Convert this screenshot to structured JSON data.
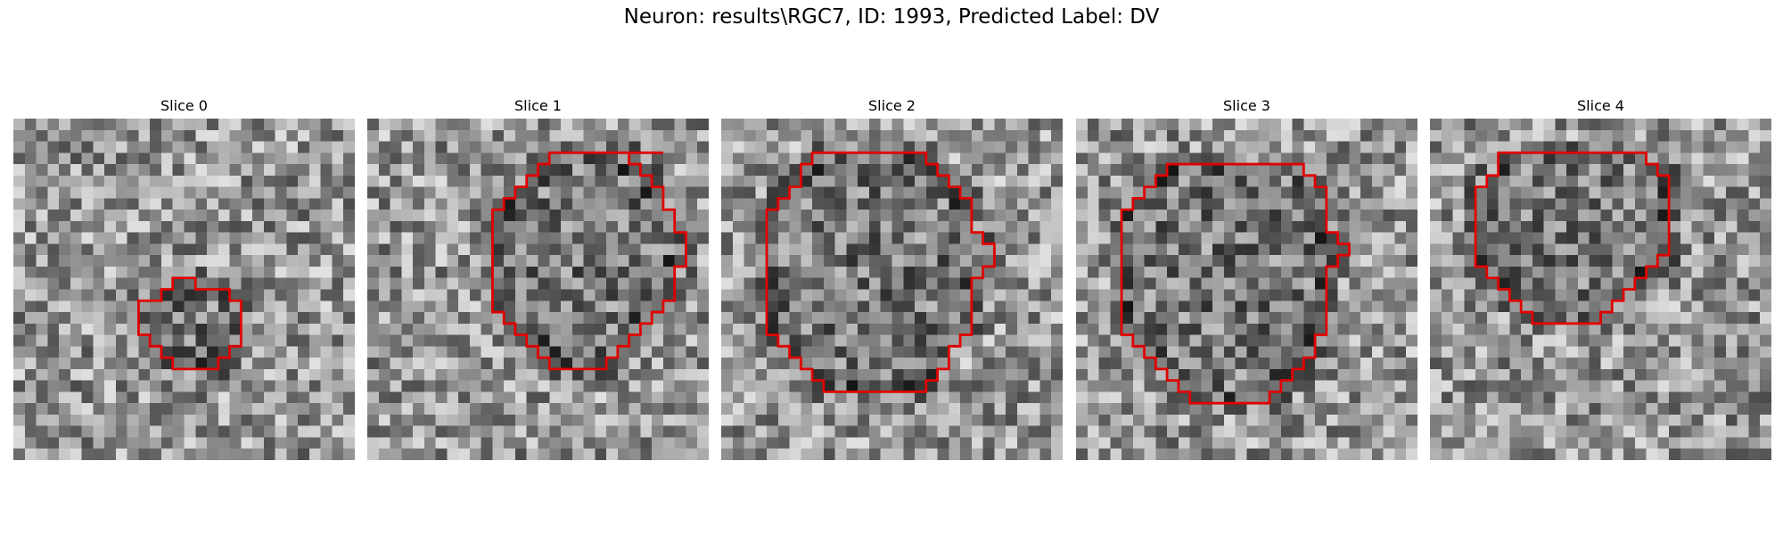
{
  "figure": {
    "title": "Neuron: results\\RGC7, ID: 1993, Predicted Label: DV",
    "contour_color": "#e00000"
  },
  "panels": [
    {
      "title": "Slice 0",
      "contour": [
        [
          19,
          15
        ],
        [
          16,
          15
        ],
        [
          16,
          14
        ],
        [
          14,
          14
        ],
        [
          14,
          15
        ],
        [
          13,
          15
        ],
        [
          13,
          16
        ],
        [
          11,
          16
        ],
        [
          11,
          19
        ],
        [
          12,
          19
        ],
        [
          12,
          20
        ],
        [
          13,
          20
        ],
        [
          13,
          21
        ],
        [
          14,
          21
        ],
        [
          14,
          22
        ],
        [
          18,
          22
        ],
        [
          18,
          21
        ],
        [
          19,
          21
        ],
        [
          19,
          20
        ],
        [
          20,
          20
        ],
        [
          20,
          19
        ],
        [
          20,
          16
        ],
        [
          19,
          16
        ]
      ]
    },
    {
      "title": "Slice 1",
      "contour": [
        [
          26,
          3
        ],
        [
          16,
          3
        ],
        [
          16,
          4
        ],
        [
          15,
          4
        ],
        [
          15,
          5
        ],
        [
          14,
          5
        ],
        [
          14,
          6
        ],
        [
          13,
          6
        ],
        [
          13,
          7
        ],
        [
          12,
          7
        ],
        [
          12,
          8
        ],
        [
          11,
          8
        ],
        [
          11,
          17
        ],
        [
          12,
          17
        ],
        [
          12,
          18
        ],
        [
          13,
          18
        ],
        [
          13,
          19
        ],
        [
          14,
          19
        ],
        [
          14,
          20
        ],
        [
          15,
          20
        ],
        [
          15,
          21
        ],
        [
          16,
          21
        ],
        [
          16,
          22
        ],
        [
          21,
          22
        ],
        [
          21,
          21
        ],
        [
          22,
          21
        ],
        [
          22,
          20
        ],
        [
          23,
          20
        ],
        [
          23,
          19
        ],
        [
          24,
          19
        ],
        [
          24,
          18
        ],
        [
          25,
          18
        ],
        [
          25,
          17
        ],
        [
          26,
          17
        ],
        [
          26,
          16
        ],
        [
          27,
          16
        ],
        [
          27,
          13
        ],
        [
          28,
          13
        ],
        [
          28,
          10
        ],
        [
          27,
          10
        ],
        [
          27,
          8
        ],
        [
          26,
          8
        ],
        [
          26,
          6
        ],
        [
          25,
          6
        ],
        [
          25,
          5
        ],
        [
          24,
          5
        ],
        [
          24,
          4
        ],
        [
          23,
          4
        ],
        [
          23,
          3
        ]
      ]
    },
    {
      "title": "Slice 2",
      "contour": [
        [
          17,
          3
        ],
        [
          8,
          3
        ],
        [
          8,
          4
        ],
        [
          7,
          4
        ],
        [
          7,
          6
        ],
        [
          6,
          6
        ],
        [
          6,
          7
        ],
        [
          5,
          7
        ],
        [
          5,
          8
        ],
        [
          4,
          8
        ],
        [
          4,
          19
        ],
        [
          5,
          19
        ],
        [
          5,
          20
        ],
        [
          6,
          20
        ],
        [
          6,
          21
        ],
        [
          7,
          21
        ],
        [
          7,
          22
        ],
        [
          8,
          22
        ],
        [
          8,
          23
        ],
        [
          9,
          23
        ],
        [
          9,
          24
        ],
        [
          18,
          24
        ],
        [
          18,
          23
        ],
        [
          19,
          23
        ],
        [
          19,
          22
        ],
        [
          20,
          22
        ],
        [
          20,
          20
        ],
        [
          21,
          20
        ],
        [
          21,
          19
        ],
        [
          22,
          19
        ],
        [
          22,
          14
        ],
        [
          23,
          14
        ],
        [
          23,
          13
        ],
        [
          24,
          13
        ],
        [
          24,
          12
        ],
        [
          24,
          11
        ],
        [
          23,
          11
        ],
        [
          23,
          10
        ],
        [
          22,
          10
        ],
        [
          22,
          7
        ],
        [
          21,
          7
        ],
        [
          21,
          6
        ],
        [
          20,
          6
        ],
        [
          20,
          5
        ],
        [
          19,
          5
        ],
        [
          19,
          4
        ],
        [
          18,
          4
        ],
        [
          18,
          3
        ]
      ]
    },
    {
      "title": "Slice 3",
      "contour": [
        [
          20,
          4
        ],
        [
          8,
          4
        ],
        [
          8,
          5
        ],
        [
          7,
          5
        ],
        [
          7,
          6
        ],
        [
          6,
          6
        ],
        [
          6,
          7
        ],
        [
          5,
          7
        ],
        [
          5,
          8
        ],
        [
          4,
          8
        ],
        [
          4,
          19
        ],
        [
          5,
          19
        ],
        [
          5,
          20
        ],
        [
          6,
          20
        ],
        [
          6,
          21
        ],
        [
          7,
          21
        ],
        [
          7,
          22
        ],
        [
          8,
          22
        ],
        [
          8,
          23
        ],
        [
          9,
          23
        ],
        [
          9,
          24
        ],
        [
          10,
          24
        ],
        [
          10,
          25
        ],
        [
          17,
          25
        ],
        [
          17,
          24
        ],
        [
          18,
          24
        ],
        [
          18,
          23
        ],
        [
          19,
          23
        ],
        [
          19,
          22
        ],
        [
          20,
          22
        ],
        [
          20,
          21
        ],
        [
          21,
          21
        ],
        [
          21,
          19
        ],
        [
          22,
          19
        ],
        [
          22,
          13
        ],
        [
          23,
          13
        ],
        [
          23,
          12
        ],
        [
          24,
          12
        ],
        [
          24,
          11
        ],
        [
          23,
          11
        ],
        [
          23,
          10
        ],
        [
          22,
          10
        ],
        [
          22,
          6
        ],
        [
          21,
          6
        ],
        [
          21,
          5
        ],
        [
          20,
          5
        ]
      ]
    },
    {
      "title": "Slice 4",
      "contour": [
        [
          18,
          3
        ],
        [
          12,
          3
        ],
        [
          6,
          3
        ],
        [
          6,
          5
        ],
        [
          5,
          5
        ],
        [
          5,
          6
        ],
        [
          4,
          6
        ],
        [
          4,
          13
        ],
        [
          5,
          13
        ],
        [
          5,
          14
        ],
        [
          6,
          14
        ],
        [
          6,
          15
        ],
        [
          7,
          15
        ],
        [
          7,
          16
        ],
        [
          8,
          16
        ],
        [
          8,
          17
        ],
        [
          9,
          17
        ],
        [
          9,
          18
        ],
        [
          15,
          18
        ],
        [
          15,
          17
        ],
        [
          16,
          17
        ],
        [
          16,
          16
        ],
        [
          17,
          16
        ],
        [
          17,
          15
        ],
        [
          18,
          15
        ],
        [
          18,
          14
        ],
        [
          19,
          14
        ],
        [
          19,
          13
        ],
        [
          20,
          13
        ],
        [
          20,
          12
        ],
        [
          21,
          12
        ],
        [
          21,
          5
        ],
        [
          20,
          5
        ],
        [
          20,
          4
        ],
        [
          19,
          4
        ],
        [
          19,
          3
        ]
      ]
    }
  ]
}
